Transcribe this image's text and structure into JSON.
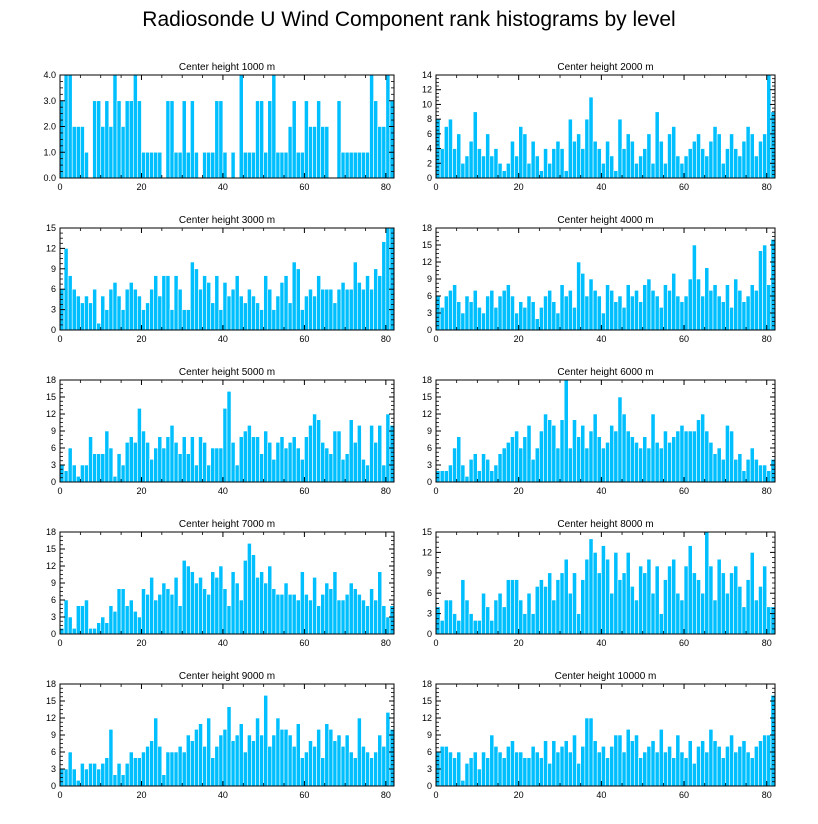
{
  "title": "Radiosonde U Wind Component rank histograms by level",
  "colors": {
    "bar": "#00BFFF",
    "bar_edge": "#ffffff",
    "axis": "#000000"
  },
  "chart_data": [
    {
      "type": "bar",
      "title": "Center height 1000 m",
      "xlim": [
        0,
        82
      ],
      "ylim": [
        0,
        4
      ],
      "xticks": [
        0,
        20,
        40,
        60,
        80
      ],
      "yticks": [
        0,
        1,
        2,
        3,
        4
      ],
      "ytick_labels": [
        "0.0",
        "1.0",
        "2.0",
        "3.0",
        "4.0"
      ],
      "values": [
        3,
        4,
        4,
        2,
        2,
        2,
        1,
        0,
        3,
        3,
        2,
        3,
        2,
        4,
        3,
        2,
        3,
        3,
        4,
        3,
        1,
        1,
        1,
        1,
        1,
        0,
        3,
        3,
        1,
        1,
        3,
        1,
        3,
        1,
        0,
        1,
        1,
        1,
        3,
        3,
        1,
        0,
        1,
        0,
        4,
        1,
        1,
        1,
        3,
        3,
        1,
        3,
        4,
        1,
        1,
        1,
        2,
        3,
        1,
        1,
        3,
        2,
        2,
        3,
        2,
        2,
        0,
        0,
        3,
        1,
        1,
        1,
        1,
        1,
        1,
        1,
        4,
        3,
        2,
        2,
        4,
        3
      ]
    },
    {
      "type": "bar",
      "title": "Center height 2000 m",
      "xlim": [
        0,
        82
      ],
      "ylim": [
        0,
        14
      ],
      "xticks": [
        0,
        20,
        40,
        60,
        80
      ],
      "yticks": [
        0,
        2,
        4,
        6,
        8,
        10,
        12,
        14
      ],
      "ytick_labels": [
        "0",
        "2",
        "4",
        "6",
        "8",
        "10",
        "12",
        "14"
      ],
      "values": [
        8,
        4,
        7,
        8,
        4,
        6,
        2,
        3,
        5,
        9,
        4,
        3,
        6,
        3,
        4,
        2,
        1,
        2,
        5,
        3,
        7,
        6,
        2,
        5,
        3,
        1,
        4,
        2,
        4,
        5,
        4,
        1,
        8,
        5,
        6,
        4,
        8,
        11,
        5,
        4,
        2,
        5,
        3,
        1,
        8,
        4,
        6,
        5,
        2,
        3,
        4,
        6,
        2,
        9,
        5,
        2,
        6,
        7,
        3,
        2,
        3,
        4,
        5,
        6,
        4,
        3,
        5,
        7,
        6,
        2,
        4,
        6,
        4,
        3,
        5,
        7,
        6,
        3,
        5,
        6,
        14,
        9
      ]
    },
    {
      "type": "bar",
      "title": "Center height 3000 m",
      "xlim": [
        0,
        82
      ],
      "ylim": [
        0,
        15
      ],
      "xticks": [
        0,
        20,
        40,
        60,
        80
      ],
      "yticks": [
        0,
        3,
        6,
        9,
        12,
        15
      ],
      "ytick_labels": [
        "0",
        "3",
        "6",
        "9",
        "12",
        "15"
      ],
      "values": [
        6,
        12,
        8,
        6,
        5,
        4,
        5,
        4,
        6,
        1,
        5,
        3,
        6,
        7,
        5,
        3,
        6,
        7,
        6,
        5,
        3,
        4,
        6,
        8,
        5,
        8,
        8,
        3,
        8,
        6,
        3,
        3,
        10,
        9,
        6,
        8,
        7,
        4,
        8,
        3,
        7,
        5,
        6,
        8,
        5,
        4,
        6,
        5,
        4,
        3,
        8,
        6,
        3,
        5,
        7,
        8,
        4,
        10,
        9,
        3,
        5,
        6,
        5,
        8,
        6,
        6,
        6,
        4,
        6,
        7,
        6,
        6,
        10,
        7,
        6,
        8,
        6,
        9,
        8,
        13,
        15,
        15
      ]
    },
    {
      "type": "bar",
      "title": "Center height 4000 m",
      "xlim": [
        0,
        82
      ],
      "ylim": [
        0,
        18
      ],
      "xticks": [
        0,
        20,
        40,
        60,
        80
      ],
      "yticks": [
        0,
        3,
        6,
        9,
        12,
        15,
        18
      ],
      "ytick_labels": [
        "0",
        "3",
        "6",
        "9",
        "12",
        "15",
        "18"
      ],
      "values": [
        6,
        4,
        6,
        7,
        8,
        5,
        3,
        6,
        5,
        7,
        4,
        3,
        6,
        7,
        4,
        6,
        7,
        8,
        6,
        3,
        5,
        4,
        6,
        5,
        2,
        4,
        6,
        7,
        5,
        3,
        8,
        6,
        7,
        4,
        12,
        10,
        6,
        9,
        7,
        6,
        3,
        8,
        7,
        5,
        6,
        4,
        8,
        6,
        7,
        5,
        8,
        9,
        7,
        6,
        4,
        8,
        7,
        10,
        6,
        5,
        6,
        9,
        15,
        9,
        6,
        11,
        7,
        8,
        6,
        5,
        8,
        4,
        9,
        7,
        5,
        6,
        8,
        7,
        14,
        15,
        8,
        16
      ]
    },
    {
      "type": "bar",
      "title": "Center height 5000 m",
      "xlim": [
        0,
        82
      ],
      "ylim": [
        0,
        18
      ],
      "xticks": [
        0,
        20,
        40,
        60,
        80
      ],
      "yticks": [
        0,
        3,
        6,
        9,
        12,
        15,
        18
      ],
      "ytick_labels": [
        "0",
        "3",
        "6",
        "9",
        "12",
        "15",
        "18"
      ],
      "values": [
        3,
        2,
        6,
        3,
        1,
        3,
        3,
        8,
        5,
        5,
        5,
        9,
        6,
        1,
        5,
        3,
        7,
        8,
        7,
        13,
        9,
        7,
        4,
        6,
        8,
        6,
        8,
        10,
        7,
        5,
        8,
        5,
        8,
        3,
        8,
        7,
        3,
        6,
        6,
        6,
        13,
        16,
        7,
        3,
        8,
        9,
        10,
        8,
        8,
        5,
        9,
        7,
        4,
        7,
        8,
        6,
        7,
        8,
        6,
        4,
        8,
        10,
        12,
        11,
        7,
        6,
        5,
        9,
        9,
        4,
        5,
        11,
        7,
        10,
        4,
        3,
        10,
        7,
        10,
        3,
        12,
        10
      ]
    },
    {
      "type": "bar",
      "title": "Center height 6000 m",
      "xlim": [
        0,
        82
      ],
      "ylim": [
        0,
        18
      ],
      "xticks": [
        0,
        20,
        40,
        60,
        80
      ],
      "yticks": [
        0,
        3,
        6,
        9,
        12,
        15,
        18
      ],
      "ytick_labels": [
        "0",
        "3",
        "6",
        "9",
        "12",
        "15",
        "18"
      ],
      "values": [
        2,
        2,
        2,
        3,
        6,
        8,
        3,
        1,
        4,
        5,
        2,
        5,
        4,
        2,
        3,
        5,
        6,
        7,
        8,
        9,
        6,
        8,
        10,
        4,
        6,
        9,
        12,
        11,
        10,
        6,
        11,
        18,
        6,
        11,
        8,
        10,
        6,
        9,
        12,
        8,
        6,
        7,
        10,
        9,
        15,
        12,
        9,
        8,
        7,
        6,
        8,
        6,
        12,
        7,
        6,
        9,
        7,
        8,
        9,
        10,
        9,
        9,
        9,
        11,
        12,
        9,
        7,
        5,
        6,
        4,
        10,
        9,
        4,
        5,
        2,
        4,
        6,
        4,
        3,
        3,
        2,
        4
      ]
    },
    {
      "type": "bar",
      "title": "Center height 7000 m",
      "xlim": [
        0,
        82
      ],
      "ylim": [
        0,
        18
      ],
      "xticks": [
        0,
        20,
        40,
        60,
        80
      ],
      "yticks": [
        0,
        3,
        6,
        9,
        12,
        15,
        18
      ],
      "ytick_labels": [
        "0",
        "3",
        "6",
        "9",
        "12",
        "15",
        "18"
      ],
      "values": [
        1,
        6,
        3,
        1,
        5,
        5,
        6,
        1,
        1,
        2,
        3,
        2,
        5,
        4,
        8,
        8,
        5,
        6,
        4,
        3,
        8,
        7,
        10,
        6,
        7,
        9,
        8,
        7,
        10,
        5,
        13,
        12,
        11,
        9,
        10,
        8,
        7,
        11,
        10,
        12,
        8,
        5,
        11,
        9,
        6,
        13,
        16,
        14,
        10,
        11,
        9,
        12,
        8,
        7,
        7,
        9,
        7,
        7,
        6,
        11,
        7,
        6,
        10,
        5,
        7,
        9,
        8,
        11,
        6,
        6,
        7,
        9,
        8,
        7,
        6,
        5,
        8,
        6,
        11,
        5,
        3,
        5
      ]
    },
    {
      "type": "bar",
      "title": "Center height 8000 m",
      "xlim": [
        0,
        82
      ],
      "ylim": [
        0,
        15
      ],
      "xticks": [
        0,
        20,
        40,
        60,
        80
      ],
      "yticks": [
        0,
        3,
        6,
        9,
        12,
        15
      ],
      "ytick_labels": [
        "0",
        "3",
        "6",
        "9",
        "12",
        "15"
      ],
      "values": [
        4,
        2,
        5,
        5,
        3,
        2,
        8,
        5,
        3,
        2,
        2,
        6,
        4,
        2,
        5,
        6,
        4,
        8,
        8,
        8,
        5,
        3,
        6,
        3,
        7,
        8,
        7,
        9,
        5,
        8,
        9,
        11,
        6,
        9,
        3,
        8,
        11,
        14,
        12,
        9,
        13,
        11,
        6,
        12,
        8,
        9,
        12,
        7,
        5,
        10,
        9,
        11,
        6,
        10,
        3,
        8,
        10,
        11,
        6,
        5,
        10,
        13,
        9,
        8,
        6,
        15,
        10,
        5,
        11,
        9,
        6,
        9,
        10,
        7,
        4,
        8,
        12,
        5,
        7,
        10,
        4,
        4
      ]
    },
    {
      "type": "bar",
      "title": "Center height 9000 m",
      "xlim": [
        0,
        82
      ],
      "ylim": [
        0,
        18
      ],
      "xticks": [
        0,
        20,
        40,
        60,
        80
      ],
      "yticks": [
        0,
        3,
        6,
        9,
        12,
        15,
        18
      ],
      "ytick_labels": [
        "0",
        "3",
        "6",
        "9",
        "12",
        "15",
        "18"
      ],
      "values": [
        3,
        3,
        6,
        3,
        1,
        4,
        3,
        4,
        4,
        3,
        4,
        5,
        10,
        2,
        4,
        2,
        4,
        6,
        5,
        5,
        6,
        7,
        8,
        12,
        7,
        2,
        6,
        6,
        6,
        7,
        6,
        9,
        8,
        10,
        11,
        7,
        12,
        5,
        7,
        9,
        10,
        14,
        8,
        9,
        11,
        6,
        9,
        8,
        12,
        9,
        16,
        7,
        9,
        12,
        10,
        10,
        9,
        7,
        11,
        5,
        6,
        8,
        7,
        10,
        5,
        11,
        10,
        8,
        9,
        7,
        9,
        6,
        5,
        12,
        7,
        6,
        5,
        6,
        9,
        7,
        13,
        10
      ]
    },
    {
      "type": "bar",
      "title": "Center height 10000 m",
      "xlim": [
        0,
        82
      ],
      "ylim": [
        0,
        18
      ],
      "xticks": [
        0,
        20,
        40,
        60,
        80
      ],
      "yticks": [
        0,
        3,
        6,
        9,
        12,
        15,
        18
      ],
      "ytick_labels": [
        "0",
        "3",
        "6",
        "9",
        "12",
        "15",
        "18"
      ],
      "values": [
        6,
        7,
        7,
        6,
        5,
        6,
        1,
        4,
        5,
        6,
        3,
        6,
        5,
        9,
        7,
        6,
        5,
        7,
        8,
        6,
        6,
        5,
        5,
        7,
        6,
        5,
        8,
        4,
        8,
        6,
        7,
        8,
        6,
        9,
        4,
        7,
        12,
        12,
        8,
        6,
        7,
        5,
        7,
        9,
        9,
        6,
        10,
        8,
        9,
        5,
        6,
        7,
        8,
        6,
        10,
        6,
        7,
        5,
        9,
        6,
        5,
        8,
        4,
        7,
        8,
        6,
        10,
        8,
        7,
        5,
        7,
        9,
        6,
        7,
        8,
        6,
        5,
        7,
        8,
        9,
        9,
        16
      ]
    }
  ]
}
